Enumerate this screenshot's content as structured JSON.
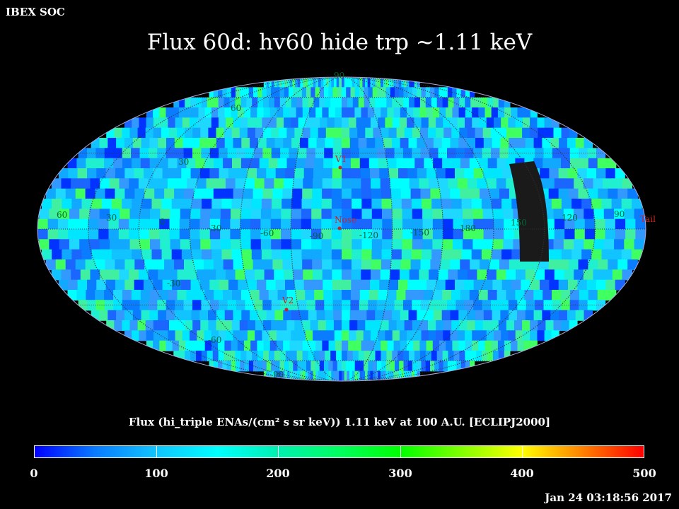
{
  "header": {
    "org_label": "IBEX SOC",
    "title": "Flux   60d: hv60 hide trp ~1.11 keV"
  },
  "map": {
    "projection": "mollweide",
    "markers": [
      {
        "name": "V1",
        "color": "#cc2222"
      },
      {
        "name": "Nose",
        "color": "#cc2222"
      },
      {
        "name": "V2",
        "color": "#cc2222"
      },
      {
        "name": "Tail",
        "color": "#cc2222"
      }
    ],
    "lon_labels": [
      "60",
      "30",
      "0",
      "-30",
      "-60",
      "-90",
      "-120",
      "-150",
      "180",
      "150",
      "120",
      "90"
    ],
    "lat_labels": [
      "90",
      "60",
      "30",
      "-30",
      "-60",
      "-90"
    ],
    "masked_region_color": "#1a1a1a"
  },
  "colorbar": {
    "title": "Flux (hi_triple ENAs/(cm² s sr keV))  1.11 keV at 100 A.U. [ECLIPJ2000]",
    "tick_labels": [
      "0",
      "100",
      "200",
      "300",
      "400",
      "500"
    ],
    "range": [
      0,
      500
    ]
  },
  "footer": {
    "timestamp": "Jan 24 03:18:56 2017"
  }
}
